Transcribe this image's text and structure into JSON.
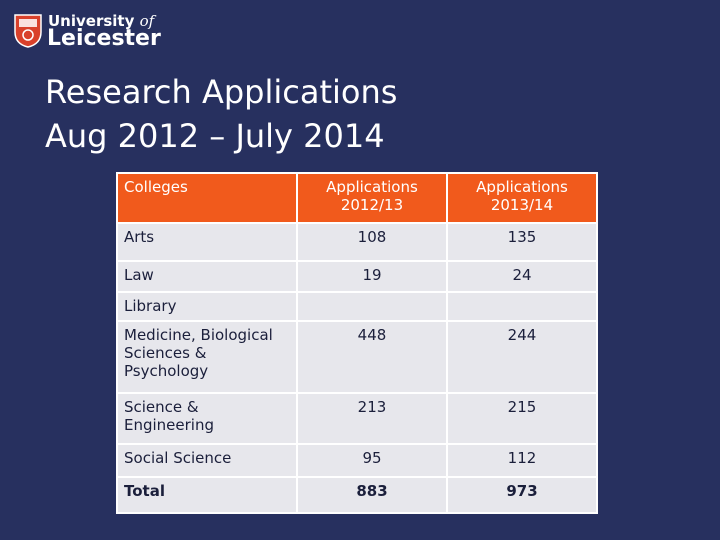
{
  "logo": {
    "word1": "University",
    "word2": "of",
    "word3": "Leicester"
  },
  "title": [
    "Research Applications",
    "Aug 2012 – July 2014"
  ],
  "table": {
    "header": [
      "Colleges",
      "Applications 2012/13",
      "Applications 2013/14"
    ],
    "rows": [
      [
        "Arts",
        108,
        135
      ],
      [
        "Law",
        19,
        24
      ],
      [
        "Library"
      ],
      [
        "Medicine, Biological Sciences & Psychology",
        448,
        244
      ],
      [
        "Science & Engineering",
        213,
        215
      ],
      [
        "Social Science",
        95,
        112
      ],
      [
        "Total",
        883,
        973
      ]
    ]
  }
}
